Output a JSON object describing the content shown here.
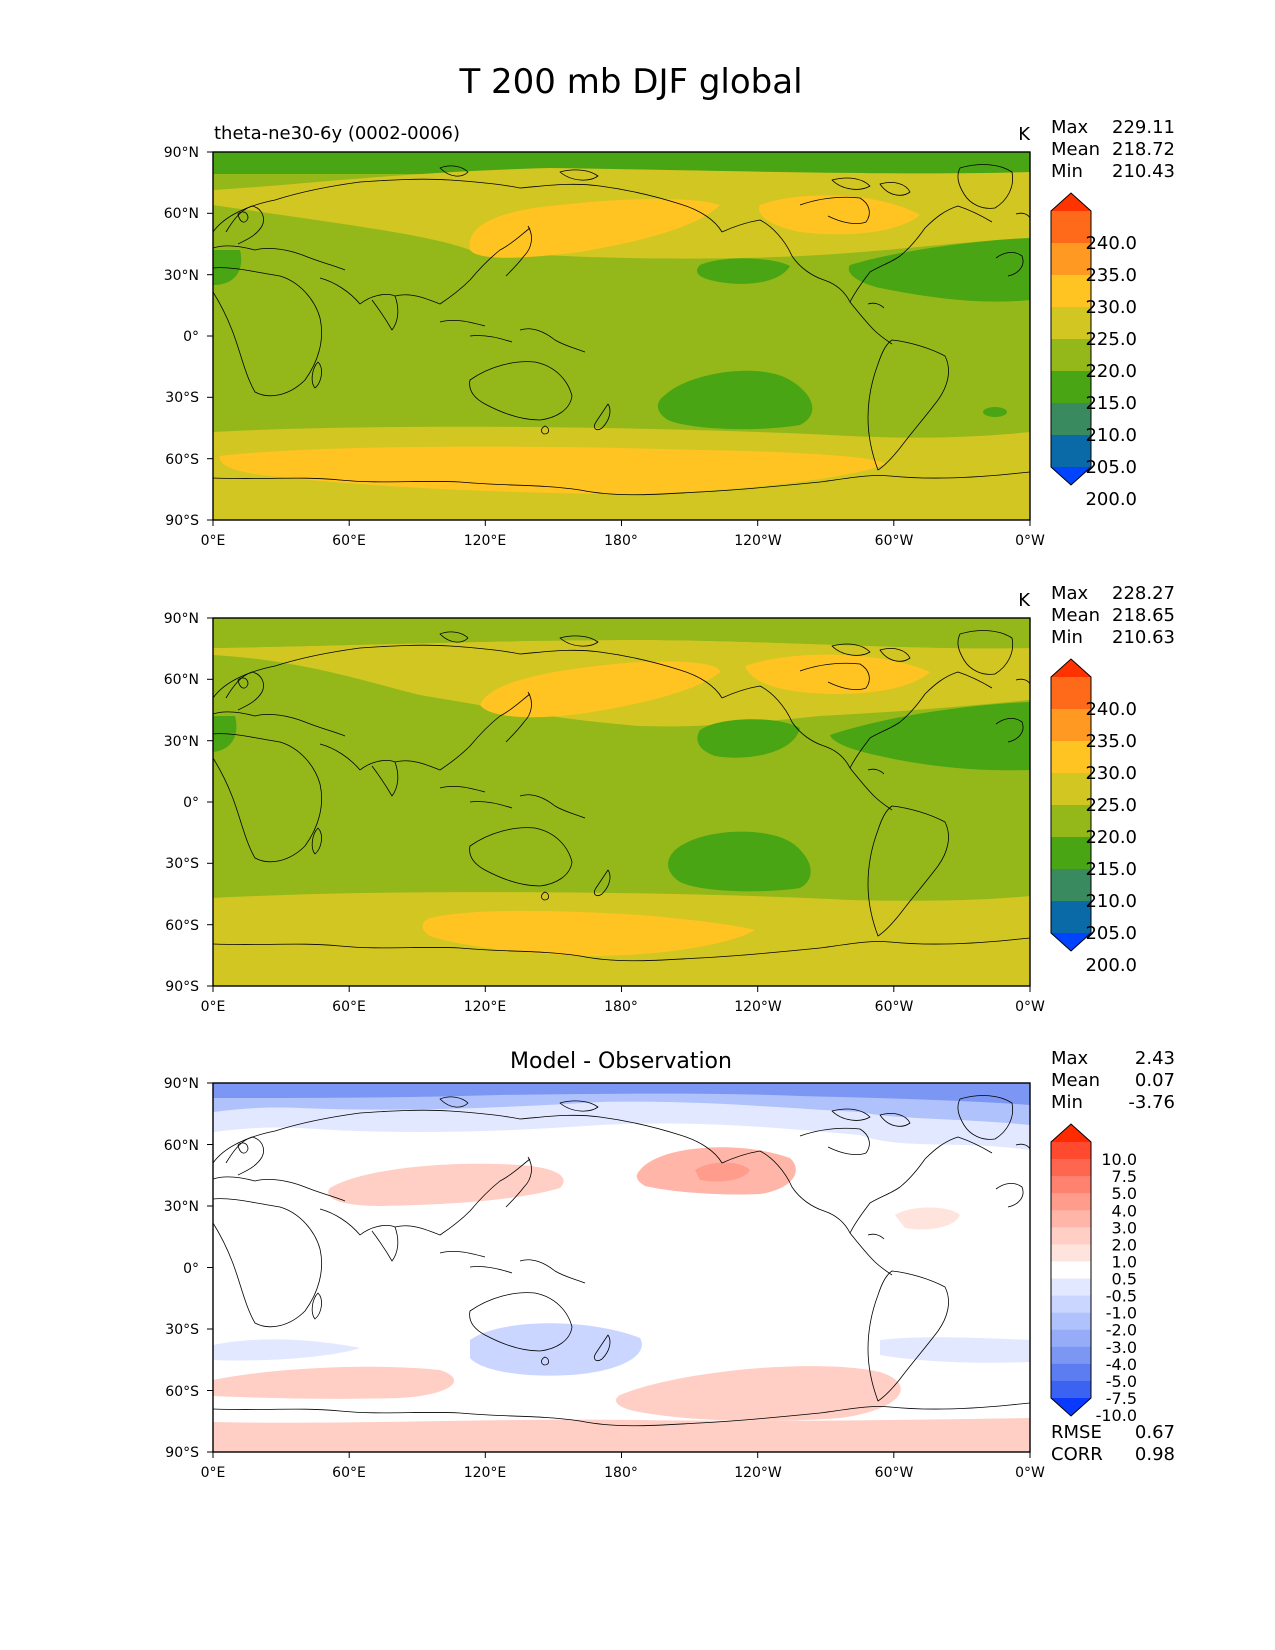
{
  "title": "T 200 mb DJF global",
  "x_ticks": [
    "0°E",
    "60°E",
    "120°E",
    "180°",
    "120°W",
    "60°W",
    "0°W"
  ],
  "y_ticks": [
    "90°N",
    "60°N",
    "30°N",
    "0°",
    "30°S",
    "60°S",
    "90°S"
  ],
  "stat_labels": {
    "max": "Max",
    "mean": "Mean",
    "min": "Min",
    "rmse": "RMSE",
    "corr": "CORR"
  },
  "panels": [
    {
      "id": "model",
      "left_title": "theta-ne30-6y (0002-0006)",
      "center_title": "",
      "units": "K",
      "stats": {
        "max": "229.11",
        "mean": "218.72",
        "min": "210.43"
      },
      "colorbar": {
        "levels": [
          "240.0",
          "235.0",
          "230.0",
          "225.0",
          "220.0",
          "215.0",
          "210.0",
          "205.0",
          "200.0"
        ],
        "colors": [
          "#ff3300",
          "#ff6a1a",
          "#ff9922",
          "#ffc422",
          "#d2c622",
          "#94b81a",
          "#4aa514",
          "#3a8a60",
          "#0a6aa8",
          "#0044ff"
        ]
      }
    },
    {
      "id": "obs",
      "left_title": "",
      "center_title": "",
      "units": "K",
      "stats": {
        "max": "228.27",
        "mean": "218.65",
        "min": "210.63"
      },
      "colorbar": {
        "levels": [
          "240.0",
          "235.0",
          "230.0",
          "225.0",
          "220.0",
          "215.0",
          "210.0",
          "205.0",
          "200.0"
        ],
        "colors": [
          "#ff3300",
          "#ff6a1a",
          "#ff9922",
          "#ffc422",
          "#d2c622",
          "#94b81a",
          "#4aa514",
          "#3a8a60",
          "#0a6aa8",
          "#0044ff"
        ]
      }
    },
    {
      "id": "diff",
      "left_title": "",
      "center_title": "Model - Observation",
      "units": "",
      "stats": {
        "max": "2.43",
        "mean": "0.07",
        "min": "-3.76"
      },
      "metrics": {
        "rmse": "0.67",
        "corr": "0.98"
      },
      "colorbar": {
        "levels": [
          "10.0",
          "7.5",
          "5.0",
          "4.0",
          "3.0",
          "2.0",
          "1.0",
          "0.5",
          "-0.5",
          "-1.0",
          "-2.0",
          "-3.0",
          "-4.0",
          "-5.0",
          "-7.5",
          "-10.0"
        ],
        "colors": [
          "#ff2a00",
          "#ff4a30",
          "#ff6650",
          "#ff8270",
          "#ff9c8c",
          "#ffb6a8",
          "#ffcec4",
          "#ffe4de",
          "#ffffff",
          "#e2e8ff",
          "#cad6ff",
          "#b0c2fc",
          "#96acf8",
          "#7c96f4",
          "#5c7cf2",
          "#3c62f2",
          "#0a3aff"
        ]
      }
    }
  ],
  "chart_data": {
    "type": "map",
    "title": "T 200 mb DJF global",
    "projection": "plate-carree, central longitude 180",
    "lon_range": [
      0,
      360
    ],
    "lat_range": [
      -90,
      90
    ]
  }
}
